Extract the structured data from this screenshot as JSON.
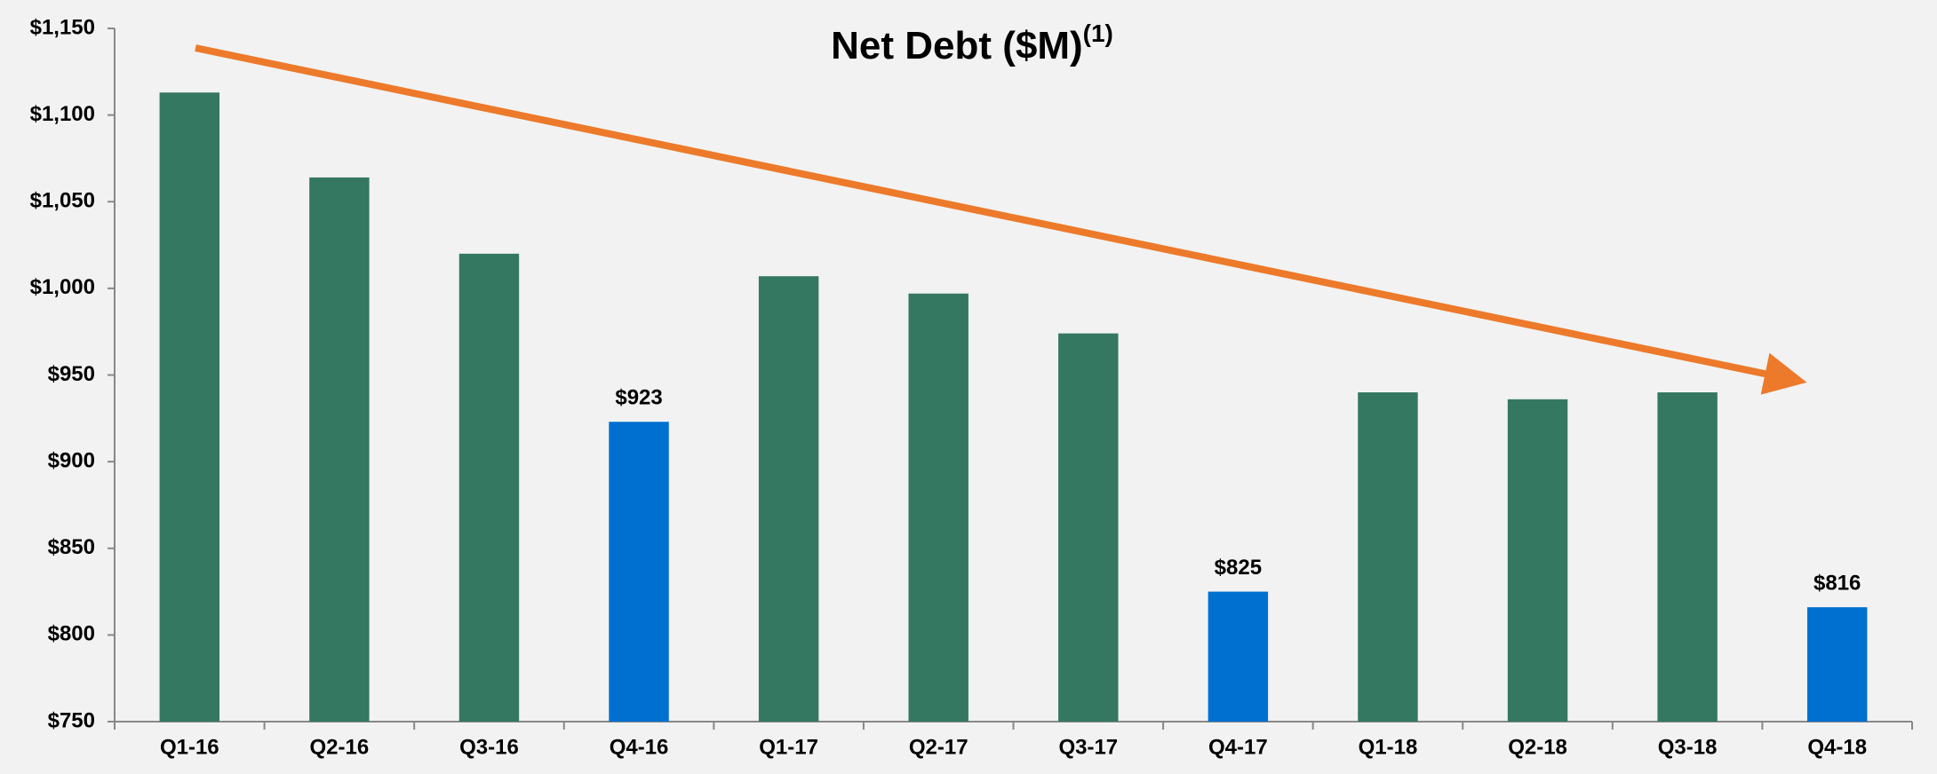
{
  "chart_data": {
    "type": "bar",
    "title": "Net Debt ($M)",
    "title_superscript": "(1)",
    "categories": [
      "Q1-16",
      "Q2-16",
      "Q3-16",
      "Q4-16",
      "Q1-17",
      "Q2-17",
      "Q3-17",
      "Q4-17",
      "Q1-18",
      "Q2-18",
      "Q3-18",
      "Q4-18"
    ],
    "values": [
      1113,
      1064,
      1020,
      923,
      1007,
      997,
      974,
      825,
      940,
      936,
      940,
      816
    ],
    "value_labels": [
      null,
      null,
      null,
      "$923",
      null,
      null,
      null,
      "$825",
      null,
      null,
      null,
      "$816"
    ],
    "colors": [
      "#357862",
      "#357862",
      "#357862",
      "#0070d0",
      "#357862",
      "#357862",
      "#357862",
      "#0070d0",
      "#357862",
      "#357862",
      "#357862",
      "#0070d0"
    ],
    "ylim": [
      750,
      1150
    ],
    "yticks": [
      {
        "value": 750,
        "label": "$750"
      },
      {
        "value": 800,
        "label": "$800"
      },
      {
        "value": 850,
        "label": "$850"
      },
      {
        "value": 900,
        "label": "$900"
      },
      {
        "value": 950,
        "label": "$950"
      },
      {
        "value": 1000,
        "label": "$1,000"
      },
      {
        "value": 1050,
        "label": "$1,050"
      },
      {
        "value": 1100,
        "label": "$1,100"
      },
      {
        "value": 1150,
        "label": "$1,150"
      }
    ],
    "grid": false
  }
}
